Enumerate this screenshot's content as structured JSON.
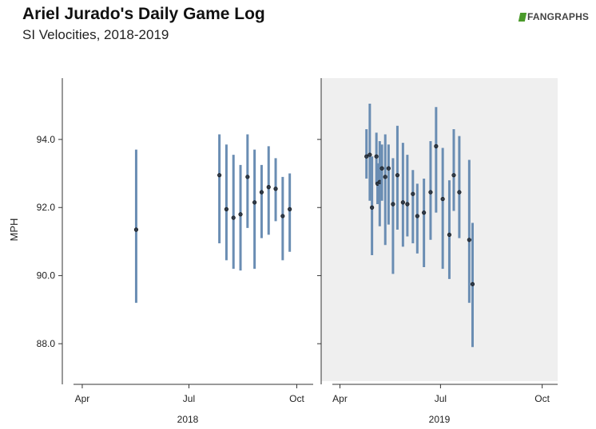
{
  "header": {
    "title": "Ariel Jurado's Daily Game Log",
    "subtitle": "SI Velocities, 2018-2019",
    "logo_text": "FANGRAPHS"
  },
  "colors": {
    "bar": "#6a8db3",
    "point_fill": "#2f3b4a",
    "panel_2019_bg": "#efefef",
    "logo_green": "#4a9a2a"
  },
  "chart_data": {
    "type": "scatter",
    "ylabel": "MPH",
    "ylim": [
      86.9,
      95.8
    ],
    "yticks": [
      88.0,
      90.0,
      92.0,
      94.0
    ],
    "ytick_labels": [
      "88.0",
      "90.0",
      "92.0",
      "94.0"
    ],
    "grid": false,
    "panels": [
      {
        "name": "2018",
        "xlabel": "2018",
        "x_range": [
          "2018-03-15",
          "2018-10-15"
        ],
        "xticks": [
          "2018-04-01",
          "2018-07-01",
          "2018-10-01"
        ],
        "xtick_labels": [
          "Apr",
          "Jul",
          "Oct"
        ],
        "shaded": false,
        "points": [
          {
            "date": "2018-05-17",
            "mean": 91.35,
            "low": 89.2,
            "high": 93.7
          },
          {
            "date": "2018-07-27",
            "mean": 92.95,
            "low": 90.95,
            "high": 94.15
          },
          {
            "date": "2018-08-02",
            "mean": 91.95,
            "low": 90.45,
            "high": 93.85
          },
          {
            "date": "2018-08-08",
            "mean": 91.7,
            "low": 90.2,
            "high": 93.55
          },
          {
            "date": "2018-08-14",
            "mean": 91.8,
            "low": 90.15,
            "high": 93.25
          },
          {
            "date": "2018-08-20",
            "mean": 92.9,
            "low": 91.4,
            "high": 94.15
          },
          {
            "date": "2018-08-26",
            "mean": 92.15,
            "low": 90.2,
            "high": 93.7
          },
          {
            "date": "2018-09-01",
            "mean": 92.45,
            "low": 91.1,
            "high": 93.25
          },
          {
            "date": "2018-09-07",
            "mean": 92.6,
            "low": 91.2,
            "high": 93.8
          },
          {
            "date": "2018-09-13",
            "mean": 92.55,
            "low": 91.6,
            "high": 93.45
          },
          {
            "date": "2018-09-19",
            "mean": 91.75,
            "low": 90.45,
            "high": 92.9
          },
          {
            "date": "2018-09-25",
            "mean": 91.95,
            "low": 90.7,
            "high": 93.0
          }
        ]
      },
      {
        "name": "2019",
        "xlabel": "2019",
        "x_range": [
          "2019-03-15",
          "2019-10-15"
        ],
        "xticks": [
          "2019-04-01",
          "2019-07-01",
          "2019-10-01"
        ],
        "xtick_labels": [
          "Apr",
          "Jul",
          "Oct"
        ],
        "shaded": true,
        "points": [
          {
            "date": "2019-04-25",
            "mean": 93.5,
            "low": 92.85,
            "high": 94.3
          },
          {
            "date": "2019-04-28",
            "mean": 93.55,
            "low": 92.2,
            "high": 95.05
          },
          {
            "date": "2019-04-30",
            "mean": 92.0,
            "low": 90.6,
            "high": 93.5
          },
          {
            "date": "2019-05-04",
            "mean": 93.5,
            "low": 92.7,
            "high": 94.2
          },
          {
            "date": "2019-05-05",
            "mean": 92.7,
            "low": 92.1,
            "high": 93.3
          },
          {
            "date": "2019-05-07",
            "mean": 92.75,
            "low": 91.45,
            "high": 93.95
          },
          {
            "date": "2019-05-09",
            "mean": 93.15,
            "low": 92.2,
            "high": 93.85
          },
          {
            "date": "2019-05-12",
            "mean": 92.9,
            "low": 90.9,
            "high": 94.15
          },
          {
            "date": "2019-05-15",
            "mean": 93.15,
            "low": 91.5,
            "high": 93.85
          },
          {
            "date": "2019-05-19",
            "mean": 92.1,
            "low": 90.05,
            "high": 93.45
          },
          {
            "date": "2019-05-23",
            "mean": 92.95,
            "low": 91.35,
            "high": 94.4
          },
          {
            "date": "2019-05-28",
            "mean": 92.15,
            "low": 90.85,
            "high": 93.9
          },
          {
            "date": "2019-06-01",
            "mean": 92.1,
            "low": 91.15,
            "high": 93.55
          },
          {
            "date": "2019-06-06",
            "mean": 92.4,
            "low": 90.95,
            "high": 93.1
          },
          {
            "date": "2019-06-10",
            "mean": 91.75,
            "low": 90.65,
            "high": 92.7
          },
          {
            "date": "2019-06-16",
            "mean": 91.85,
            "low": 90.25,
            "high": 92.85
          },
          {
            "date": "2019-06-22",
            "mean": 92.45,
            "low": 91.05,
            "high": 93.95
          },
          {
            "date": "2019-06-27",
            "mean": 93.8,
            "low": 91.85,
            "high": 94.95
          },
          {
            "date": "2019-07-03",
            "mean": 92.25,
            "low": 90.2,
            "high": 93.75
          },
          {
            "date": "2019-07-09",
            "mean": 91.2,
            "low": 89.9,
            "high": 92.8
          },
          {
            "date": "2019-07-13",
            "mean": 92.95,
            "low": 91.9,
            "high": 94.3
          },
          {
            "date": "2019-07-18",
            "mean": 92.45,
            "low": 91.1,
            "high": 94.1
          },
          {
            "date": "2019-07-27",
            "mean": 91.05,
            "low": 89.2,
            "high": 93.4
          },
          {
            "date": "2019-07-30",
            "mean": 89.75,
            "low": 87.9,
            "high": 91.55
          }
        ]
      }
    ]
  }
}
